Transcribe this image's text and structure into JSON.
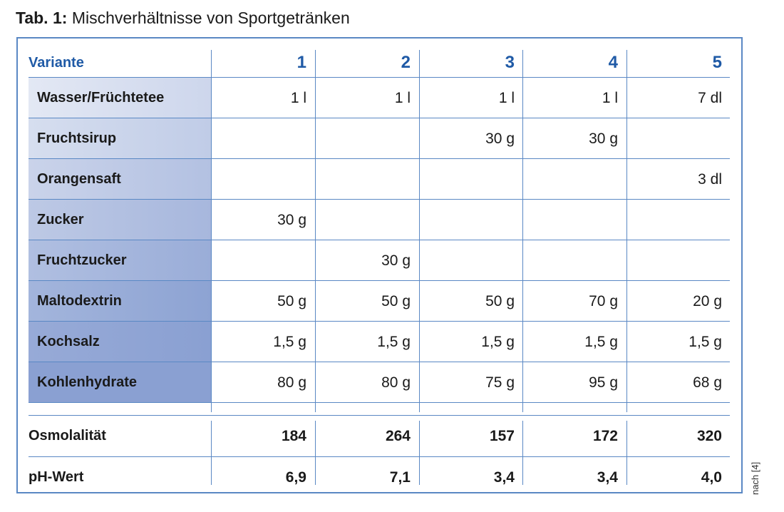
{
  "caption": {
    "label": "Tab. 1:",
    "title": "Mischverhältnisse von Sportgetränken"
  },
  "source_note": "nach [4]",
  "colors": {
    "accent": "#1f5aa6",
    "border": "#5a88c4",
    "row_label_gradient_light": "#e3e8f4",
    "row_label_gradient_dark": "#8aa0d2"
  },
  "header": {
    "title": "Variante",
    "columns": [
      "1",
      "2",
      "3",
      "4",
      "5"
    ]
  },
  "rows": [
    {
      "label": "Wasser/Früchtetee",
      "values": [
        "1 l",
        "1 l",
        "1 l",
        "1 l",
        "7 dl"
      ]
    },
    {
      "label": "Fruchtsirup",
      "values": [
        "",
        "",
        "30 g",
        "30 g",
        ""
      ]
    },
    {
      "label": "Orangensaft",
      "values": [
        "",
        "",
        "",
        "",
        "3 dl"
      ]
    },
    {
      "label": "Zucker",
      "values": [
        "30 g",
        "",
        "",
        "",
        ""
      ]
    },
    {
      "label": "Fruchtzucker",
      "values": [
        "",
        "30 g",
        "",
        "",
        ""
      ]
    },
    {
      "label": "Maltodextrin",
      "values": [
        "50 g",
        "50 g",
        "50 g",
        "70 g",
        "20 g"
      ]
    },
    {
      "label": "Kochsalz",
      "values": [
        "1,5 g",
        "1,5 g",
        "1,5 g",
        "1,5 g",
        "1,5 g"
      ]
    },
    {
      "label": "Kohlenhydrate",
      "values": [
        "80 g",
        "80 g",
        "75 g",
        "95 g",
        "68 g"
      ]
    }
  ],
  "summary_rows": [
    {
      "label": "Osmolalität",
      "values": [
        "184",
        "264",
        "157",
        "172",
        "320"
      ]
    },
    {
      "label": "pH-Wert",
      "values": [
        "6,9",
        "7,1",
        "3,4",
        "3,4",
        "4,0"
      ]
    }
  ]
}
